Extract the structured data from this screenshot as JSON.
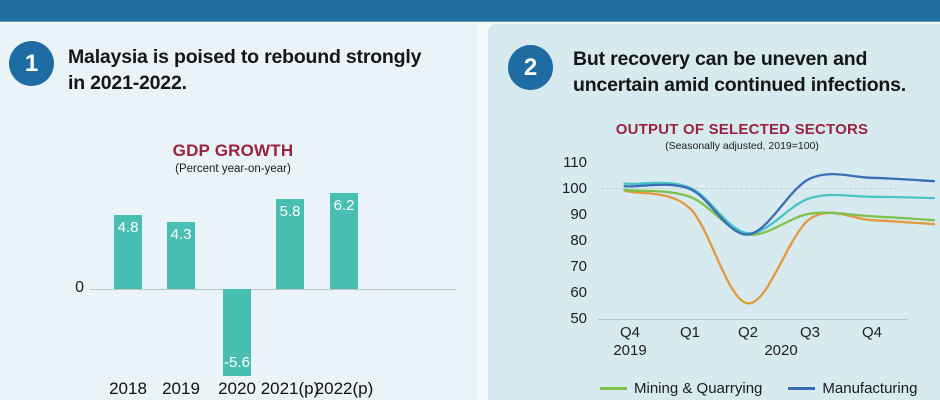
{
  "topbar": {
    "color": "#2270a1"
  },
  "background": {
    "page": "#f4fafc",
    "left_panel": "#e9f3f8",
    "right_panel": "#d6eaf0"
  },
  "badge_color": "#1f6ba3",
  "accent_title_color": "#9c2340",
  "panels": {
    "left": {
      "badge": "1",
      "headline_lines": [
        "Malaysia is poised to rebound strongly",
        "in 2021-2022."
      ]
    },
    "right": {
      "badge": "2",
      "headline_lines": [
        "But recovery can be uneven and",
        "uncertain amid continued infections."
      ]
    }
  },
  "chart_data": [
    {
      "type": "bar",
      "title": "GDP GROWTH",
      "subtitle": "(Percent year-on-year)",
      "categories": [
        "2018",
        "2019",
        "2020",
        "2021(p)",
        "2022(p)"
      ],
      "values": [
        4.8,
        4.3,
        -5.6,
        5.8,
        6.2
      ],
      "value_labels": [
        "4.8",
        "4.3",
        "-5.6",
        "5.8",
        "6.2"
      ],
      "zero_tick_label": "0",
      "bar_color": "#49bfb4",
      "ylim": [
        -7.2,
        7.8
      ],
      "grid": "zero-baseline-only"
    },
    {
      "type": "line",
      "title": "OUTPUT OF SELECTED SECTORS",
      "subtitle": "(Seasonally adjusted, 2019=100)",
      "x_tick_labels": [
        "Q4",
        "Q1",
        "Q2",
        "Q3",
        "Q4"
      ],
      "x_year_labels": [
        "2019",
        "2020"
      ],
      "y_tick_labels": [
        "110",
        "100",
        "90",
        "80",
        "70",
        "60",
        "50"
      ],
      "ylim": [
        50,
        110
      ],
      "reference_line_at": 100,
      "legend_position": "bottom",
      "series": [
        {
          "name": "Mining & Quarrying",
          "color": "#7fc24a",
          "legend_visible": true,
          "values": [
            99.5,
            97,
            82.5,
            90.5,
            89.5
          ],
          "end_value": 88
        },
        {
          "name": "Manufacturing",
          "color": "#3a6db6",
          "legend_visible": true,
          "values": [
            101,
            100,
            82.5,
            104,
            104.3
          ],
          "end_value": 103
        },
        {
          "name": "",
          "color": "#49c3c4",
          "legend_visible": false,
          "values": [
            102,
            100.5,
            83,
            96.5,
            97
          ],
          "end_value": 96.5
        },
        {
          "name": "",
          "color": "#e3983c",
          "legend_visible": false,
          "values": [
            99,
            92.5,
            56,
            88.5,
            88
          ],
          "end_value": 86.5
        }
      ]
    }
  ]
}
